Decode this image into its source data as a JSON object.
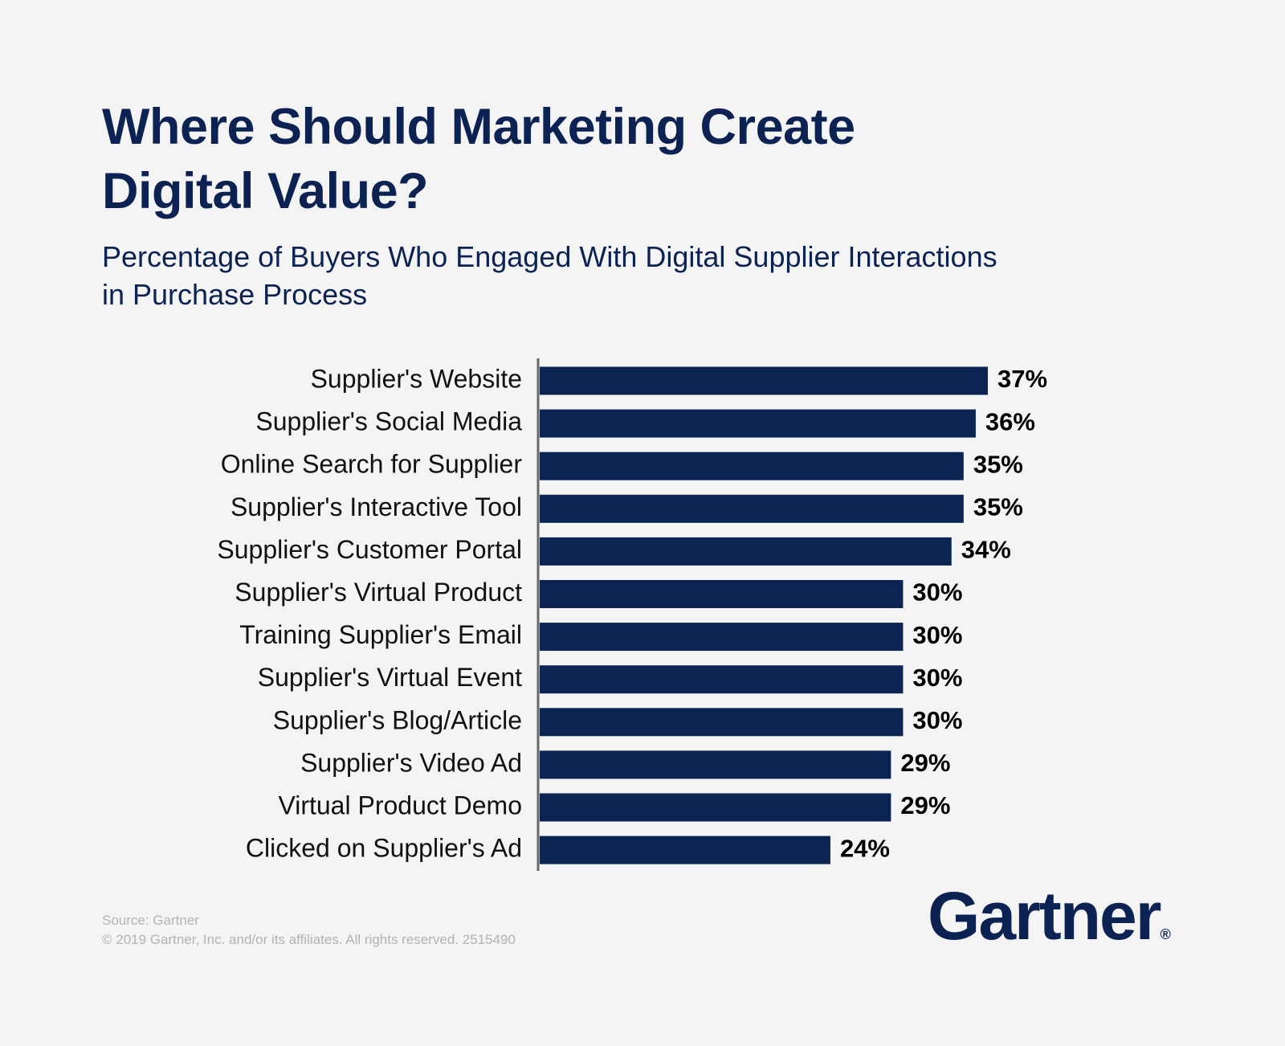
{
  "chart_data": {
    "type": "bar",
    "orientation": "horizontal",
    "title": "Where Should Marketing Create Digital Value?",
    "subtitle": "Percentage of Buyers Who Engaged With Digital Supplier Interactions in Purchase Process",
    "categories": [
      "Supplier's Website",
      "Supplier's Social Media",
      "Online Search for Supplier",
      "Supplier's Interactive Tool",
      "Supplier's Customer Portal",
      "Supplier's Virtual Product",
      "Training Supplier's Email",
      "Supplier's Virtual Event",
      "Supplier's Blog/Article",
      "Supplier's Video Ad",
      "Virtual Product Demo",
      "Clicked on Supplier's Ad"
    ],
    "values": [
      37,
      36,
      35,
      35,
      34,
      30,
      30,
      30,
      30,
      29,
      29,
      24
    ],
    "value_labels": [
      "37%",
      "36%",
      "35%",
      "35%",
      "34%",
      "30%",
      "30%",
      "30%",
      "30%",
      "29%",
      "29%",
      "24%"
    ],
    "color": "#0b2451",
    "source": "Source: Gartner",
    "copyright": "© 2019 Gartner, Inc. and/or its affiliates. All rights reserved. 2515490",
    "logo": "Gartner",
    "logo_mark": "®"
  }
}
